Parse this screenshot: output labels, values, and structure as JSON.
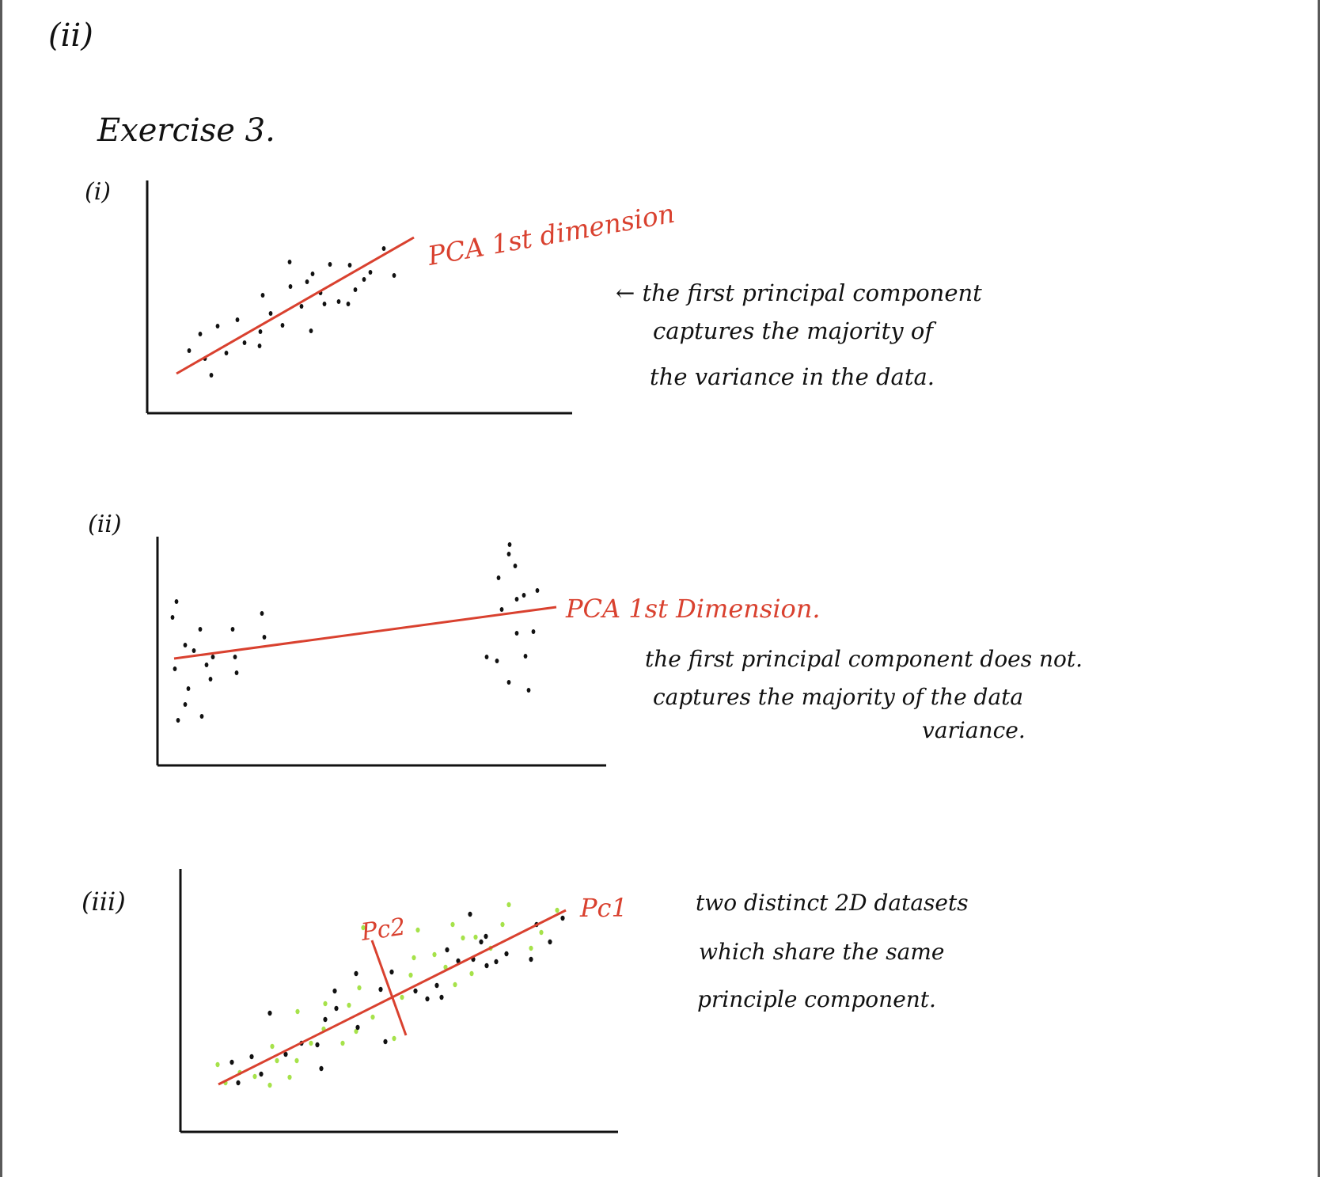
{
  "header_mark": "(ii)",
  "title": "Exercise 3.",
  "parts": [
    {
      "label": "(i)",
      "line_label": "PCA 1st dimension",
      "note": [
        "← the first principal component",
        "captures the majority of",
        "the variance in the data."
      ]
    },
    {
      "label": "(ii)",
      "line_label": "PCA 1st Dimension.",
      "note": [
        "the first principal component does not.",
        "captures the majority of the data",
        "variance."
      ]
    },
    {
      "label": "(iii)",
      "pc1_label": "Pc1",
      "pc2_label": "Pc2",
      "note": [
        "two distinct 2D datasets",
        "which share the same",
        "principle component."
      ]
    }
  ],
  "colors": {
    "ink": "#111111",
    "line": "#d9412f",
    "second_dataset": "#a6e24a",
    "frame": "#5a5a5a"
  }
}
